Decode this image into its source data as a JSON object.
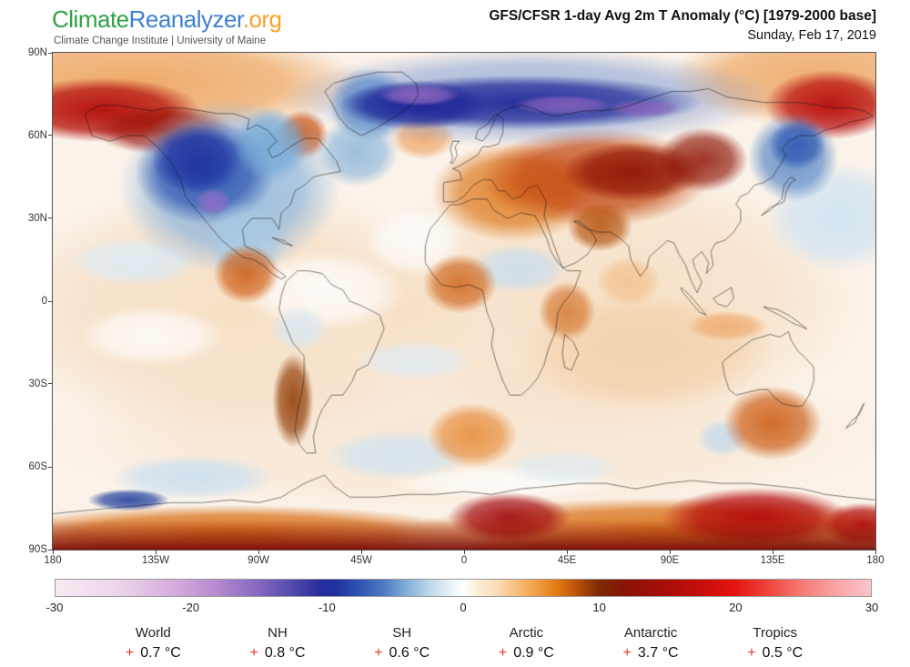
{
  "header": {
    "logo": {
      "climate": "Climate",
      "reanalyzer": "Reanalyzer",
      "org": ".org",
      "climate_color": "#2fa146",
      "reanalyzer_color": "#3f7fd0",
      "org_color": "#f7a229"
    },
    "subtitle": "Climate Change Institute | University of Maine",
    "title": "GFS/CFSR 1-day Avg 2m T Anomaly (°C) [1979-2000 base]",
    "date": "Sunday, Feb 17, 2019"
  },
  "map": {
    "lat_ticks": [
      "90N",
      "60N",
      "30N",
      "0",
      "30S",
      "60S",
      "90S"
    ],
    "lon_ticks": [
      "180",
      "135W",
      "90W",
      "45W",
      "0",
      "45E",
      "90E",
      "135E",
      "180"
    ]
  },
  "colorbar": {
    "ticks": [
      "-30",
      "-20",
      "-10",
      "0",
      "10",
      "20",
      "30"
    ],
    "stops": [
      [
        0.0,
        "#f7ebf3"
      ],
      [
        0.083,
        "#ecd2ea"
      ],
      [
        0.15,
        "#d2aadb"
      ],
      [
        0.2,
        "#b388cf"
      ],
      [
        0.25,
        "#8467bd"
      ],
      [
        0.292,
        "#4f49ac"
      ],
      [
        0.325,
        "#272c9c"
      ],
      [
        0.342,
        "#1f2f9e"
      ],
      [
        0.367,
        "#2c4cae"
      ],
      [
        0.4,
        "#4a77c2"
      ],
      [
        0.433,
        "#86b2da"
      ],
      [
        0.458,
        "#bcd7ec"
      ],
      [
        0.483,
        "#e7f0f7"
      ],
      [
        0.5,
        "#ffffff"
      ],
      [
        0.517,
        "#fdeeda"
      ],
      [
        0.542,
        "#fadbb4"
      ],
      [
        0.583,
        "#f5a952"
      ],
      [
        0.617,
        "#e0770f"
      ],
      [
        0.642,
        "#b54c08"
      ],
      [
        0.667,
        "#7c2a05"
      ],
      [
        0.7,
        "#8a1205"
      ],
      [
        0.75,
        "#a80d08"
      ],
      [
        0.8,
        "#cd0e0b"
      ],
      [
        0.833,
        "#e41410"
      ],
      [
        0.867,
        "#ee3c34"
      ],
      [
        0.917,
        "#f57d76"
      ],
      [
        0.958,
        "#f9a5a5"
      ],
      [
        1.0,
        "#fbc4cd"
      ]
    ]
  },
  "stats": [
    {
      "region": "World",
      "sign": "+",
      "value": "0.7 °C"
    },
    {
      "region": "NH",
      "sign": "+",
      "value": "0.8 °C"
    },
    {
      "region": "SH",
      "sign": "+",
      "value": "0.6 °C"
    },
    {
      "region": "Arctic",
      "sign": "+",
      "value": "0.9 °C"
    },
    {
      "region": "Antarctic",
      "sign": "+",
      "value": "3.7 °C"
    },
    {
      "region": "Tropics",
      "sign": "+",
      "value": "0.5 °C"
    }
  ],
  "accent": {
    "plus_color": "#e8392c"
  },
  "chart_data": {
    "type": "heatmap",
    "title": "GFS/CFSR 1-day Avg 2m T Anomaly (°C) [1979-2000 base]",
    "date": "Sunday, Feb 17, 2019",
    "units": "°C",
    "projection": "equirectangular",
    "lon_range": [
      -180,
      180
    ],
    "lat_range": [
      -90,
      90
    ],
    "scale_range": [
      -30,
      30
    ],
    "scale_ticks": [
      -30,
      -20,
      -10,
      0,
      10,
      20,
      30
    ],
    "regional_mean_anomalies": {
      "World": 0.7,
      "NH": 0.8,
      "SH": 0.6,
      "Arctic": 0.9,
      "Antarctic": 3.7,
      "Tropics": 0.5
    },
    "base_color": "#fbf3ea",
    "features": [
      {
        "name": "nh-polar-orange-west",
        "x": 0.1,
        "y": 0.06,
        "rx": 0.28,
        "ry": 0.11,
        "color": "#eda35c",
        "alpha": 0.9
      },
      {
        "name": "nh-polar-orange-east",
        "x": 0.93,
        "y": 0.05,
        "rx": 0.18,
        "ry": 0.1,
        "color": "#eda35c",
        "alpha": 0.85
      },
      {
        "name": "tropics-wash-west",
        "x": 0.22,
        "y": 0.52,
        "rx": 0.3,
        "ry": 0.26,
        "color": "#f4d4ae",
        "alpha": 0.6
      },
      {
        "name": "tropics-wash-east",
        "x": 0.67,
        "y": 0.5,
        "rx": 0.32,
        "ry": 0.28,
        "color": "#f4d4ae",
        "alpha": 0.55
      },
      {
        "name": "south-midlat-wash",
        "x": 0.5,
        "y": 0.77,
        "rx": 0.52,
        "ry": 0.16,
        "color": "#f6ddc2",
        "alpha": 0.5
      },
      {
        "name": "indian-ocean-wash",
        "x": 0.72,
        "y": 0.6,
        "rx": 0.16,
        "ry": 0.12,
        "color": "#f2c89b",
        "alpha": 0.6
      },
      {
        "name": "pacific-white-1",
        "x": 0.33,
        "y": 0.48,
        "rx": 0.1,
        "ry": 0.08,
        "color": "#ffffff",
        "alpha": 0.85
      },
      {
        "name": "pacific-white-2",
        "x": 0.12,
        "y": 0.57,
        "rx": 0.09,
        "ry": 0.06,
        "color": "#ffffff",
        "alpha": 0.8
      },
      {
        "name": "atlantic-white",
        "x": 0.44,
        "y": 0.38,
        "rx": 0.06,
        "ry": 0.07,
        "color": "#ffffff",
        "alpha": 0.8
      },
      {
        "name": "southern-ocean-white",
        "x": 0.55,
        "y": 0.865,
        "rx": 0.14,
        "ry": 0.035,
        "color": "#ffffff",
        "alpha": 0.8
      },
      {
        "name": "eq-pacific-blue",
        "x": 0.1,
        "y": 0.42,
        "rx": 0.08,
        "ry": 0.05,
        "color": "#dcebf6",
        "alpha": 0.9
      },
      {
        "name": "s-pacific-blue",
        "x": 0.44,
        "y": 0.62,
        "rx": 0.07,
        "ry": 0.04,
        "color": "#dcebf6",
        "alpha": 0.8
      },
      {
        "name": "s-atlantic-blue",
        "x": 0.42,
        "y": 0.81,
        "rx": 0.09,
        "ry": 0.05,
        "color": "#cfe3f1",
        "alpha": 0.85
      },
      {
        "name": "s-ocean-blue-west",
        "x": 0.17,
        "y": 0.855,
        "rx": 0.1,
        "ry": 0.045,
        "color": "#c9def0",
        "alpha": 0.85
      },
      {
        "name": "s-ocean-blue-mid",
        "x": 0.62,
        "y": 0.835,
        "rx": 0.07,
        "ry": 0.035,
        "color": "#dcebf6",
        "alpha": 0.75
      },
      {
        "name": "n-pacific-blue",
        "x": 0.955,
        "y": 0.33,
        "rx": 0.09,
        "ry": 0.11,
        "color": "#cfe3f2",
        "alpha": 0.9
      },
      {
        "name": "paraguay-blue",
        "x": 0.3,
        "y": 0.555,
        "rx": 0.035,
        "ry": 0.045,
        "color": "#d8e8f4",
        "alpha": 0.85
      },
      {
        "name": "sahara-blue",
        "x": 0.565,
        "y": 0.435,
        "rx": 0.06,
        "ry": 0.05,
        "color": "#cadeee",
        "alpha": 0.9
      },
      {
        "name": "sw-australia-blue",
        "x": 0.815,
        "y": 0.775,
        "rx": 0.032,
        "ry": 0.038,
        "color": "#c3daed",
        "alpha": 0.85
      },
      {
        "name": "bering-red",
        "x": 0.06,
        "y": 0.115,
        "rx": 0.12,
        "ry": 0.065,
        "color": "#b30b0b",
        "alpha": 0.95
      },
      {
        "name": "alaska-dark-red",
        "x": 0.135,
        "y": 0.155,
        "rx": 0.085,
        "ry": 0.05,
        "color": "#9c1309",
        "alpha": 0.85
      },
      {
        "name": "chukchi-red",
        "x": 0.945,
        "y": 0.105,
        "rx": 0.08,
        "ry": 0.07,
        "color": "#b80c0c",
        "alpha": 0.95
      },
      {
        "name": "labrador-red",
        "x": 0.303,
        "y": 0.165,
        "rx": 0.032,
        "ry": 0.05,
        "color": "#c24a0c",
        "alpha": 0.85
      },
      {
        "name": "iceland-orange",
        "x": 0.45,
        "y": 0.17,
        "rx": 0.04,
        "ry": 0.045,
        "color": "#eda05c",
        "alpha": 0.8
      },
      {
        "name": "europe-orange",
        "x": 0.56,
        "y": 0.28,
        "rx": 0.1,
        "ry": 0.1,
        "color": "#df7a1f",
        "alpha": 0.9
      },
      {
        "name": "russia-red",
        "x": 0.66,
        "y": 0.25,
        "rx": 0.14,
        "ry": 0.1,
        "color": "#c1440e",
        "alpha": 0.9
      },
      {
        "name": "russia-dark-core",
        "x": 0.705,
        "y": 0.24,
        "rx": 0.085,
        "ry": 0.06,
        "color": "#8e1506",
        "alpha": 0.9
      },
      {
        "name": "siberia-dark-core",
        "x": 0.79,
        "y": 0.215,
        "rx": 0.055,
        "ry": 0.065,
        "color": "#8e1506",
        "alpha": 0.85
      },
      {
        "name": "mideast-orange",
        "x": 0.665,
        "y": 0.35,
        "rx": 0.04,
        "ry": 0.05,
        "color": "#b5520e",
        "alpha": 0.85
      },
      {
        "name": "na-cold-halo",
        "x": 0.215,
        "y": 0.27,
        "rx": 0.135,
        "ry": 0.175,
        "color": "#8ab4dc",
        "alpha": 0.9
      },
      {
        "name": "na-cold-core",
        "x": 0.185,
        "y": 0.24,
        "rx": 0.085,
        "ry": 0.105,
        "color": "#2b50b0",
        "alpha": 0.9
      },
      {
        "name": "na-cold-dark",
        "x": 0.175,
        "y": 0.215,
        "rx": 0.055,
        "ry": 0.07,
        "color": "#1e2f9e",
        "alpha": 0.85
      },
      {
        "name": "rockies-purple",
        "x": 0.195,
        "y": 0.3,
        "rx": 0.022,
        "ry": 0.028,
        "color": "#8d6ec8",
        "alpha": 0.9
      },
      {
        "name": "us-plains-blue",
        "x": 0.235,
        "y": 0.38,
        "rx": 0.05,
        "ry": 0.08,
        "color": "#a9cbe6",
        "alpha": 0.8
      },
      {
        "name": "hudson-blue",
        "x": 0.265,
        "y": 0.185,
        "rx": 0.045,
        "ry": 0.075,
        "color": "#74a8d6",
        "alpha": 0.85
      },
      {
        "name": "greenland-blue",
        "x": 0.385,
        "y": 0.105,
        "rx": 0.05,
        "ry": 0.075,
        "color": "#4f84c4",
        "alpha": 0.9
      },
      {
        "name": "n-atlantic-blue",
        "x": 0.37,
        "y": 0.2,
        "rx": 0.05,
        "ry": 0.07,
        "color": "#86b2da",
        "alpha": 0.8
      },
      {
        "name": "arctic-blue-halo",
        "x": 0.58,
        "y": 0.09,
        "rx": 0.3,
        "ry": 0.1,
        "color": "#6f8fd0",
        "alpha": 0.6
      },
      {
        "name": "arctic-navy-band",
        "x": 0.57,
        "y": 0.1,
        "rx": 0.22,
        "ry": 0.055,
        "color": "#1c2596",
        "alpha": 0.92
      },
      {
        "name": "arctic-navy-west",
        "x": 0.44,
        "y": 0.105,
        "rx": 0.09,
        "ry": 0.05,
        "color": "#1c2596",
        "alpha": 0.9
      },
      {
        "name": "arctic-purple-streak-1",
        "x": 0.445,
        "y": 0.085,
        "rx": 0.05,
        "ry": 0.022,
        "color": "#9068c0",
        "alpha": 0.9
      },
      {
        "name": "arctic-purple-streak-2",
        "x": 0.62,
        "y": 0.105,
        "rx": 0.06,
        "ry": 0.02,
        "color": "#8a64bd",
        "alpha": 0.85
      },
      {
        "name": "arctic-purple-streak-3",
        "x": 0.72,
        "y": 0.112,
        "rx": 0.045,
        "ry": 0.018,
        "color": "#8a64bd",
        "alpha": 0.8
      },
      {
        "name": "ne-siberia-blue",
        "x": 0.9,
        "y": 0.21,
        "rx": 0.055,
        "ry": 0.09,
        "color": "#5b8ac8",
        "alpha": 0.9
      },
      {
        "name": "kamchatka-blue-core",
        "x": 0.905,
        "y": 0.185,
        "rx": 0.035,
        "ry": 0.05,
        "color": "#2f55b0",
        "alpha": 0.85
      },
      {
        "name": "mexico-orange",
        "x": 0.235,
        "y": 0.445,
        "rx": 0.04,
        "ry": 0.06,
        "color": "#cf5a10",
        "alpha": 0.85
      },
      {
        "name": "west-africa-orange",
        "x": 0.495,
        "y": 0.465,
        "rx": 0.045,
        "ry": 0.06,
        "color": "#cf641a",
        "alpha": 0.85
      },
      {
        "name": "east-africa-orange",
        "x": 0.625,
        "y": 0.52,
        "rx": 0.035,
        "ry": 0.06,
        "color": "#d06a1e",
        "alpha": 0.75
      },
      {
        "name": "india-orange",
        "x": 0.7,
        "y": 0.46,
        "rx": 0.04,
        "ry": 0.05,
        "color": "#f3bd86",
        "alpha": 0.75
      },
      {
        "name": "indonesia-orange",
        "x": 0.82,
        "y": 0.55,
        "rx": 0.05,
        "ry": 0.03,
        "color": "#eda05c",
        "alpha": 0.7
      },
      {
        "name": "argentina-brown",
        "x": 0.292,
        "y": 0.7,
        "rx": 0.025,
        "ry": 0.095,
        "color": "#93400a",
        "alpha": 0.9
      },
      {
        "name": "s-atlantic-orange",
        "x": 0.51,
        "y": 0.77,
        "rx": 0.055,
        "ry": 0.065,
        "color": "#e6832a",
        "alpha": 0.8
      },
      {
        "name": "australia-orange",
        "x": 0.875,
        "y": 0.745,
        "rx": 0.06,
        "ry": 0.075,
        "color": "#cb5a10",
        "alpha": 0.88
      },
      {
        "name": "antarctic-band-west",
        "x": 0.22,
        "y": 0.97,
        "rx": 0.3,
        "ry": 0.06,
        "color": "#d96f15",
        "alpha": 0.95
      },
      {
        "name": "antarctic-band-east",
        "x": 0.75,
        "y": 0.965,
        "rx": 0.32,
        "ry": 0.07,
        "color": "#d96f15",
        "alpha": 0.95
      },
      {
        "name": "ross-red",
        "x": 0.555,
        "y": 0.935,
        "rx": 0.075,
        "ry": 0.05,
        "color": "#a50f15",
        "alpha": 0.92
      },
      {
        "name": "east-antarctic-red",
        "x": 0.855,
        "y": 0.935,
        "rx": 0.115,
        "ry": 0.06,
        "color": "#b30b0b",
        "alpha": 0.95
      },
      {
        "name": "antarctic-red-right-edge",
        "x": 0.985,
        "y": 0.95,
        "rx": 0.05,
        "ry": 0.045,
        "color": "#b30b0b",
        "alpha": 0.9
      },
      {
        "name": "west-antarctic-blue",
        "x": 0.092,
        "y": 0.9,
        "rx": 0.05,
        "ry": 0.022,
        "color": "#23409e",
        "alpha": 0.9
      }
    ]
  }
}
